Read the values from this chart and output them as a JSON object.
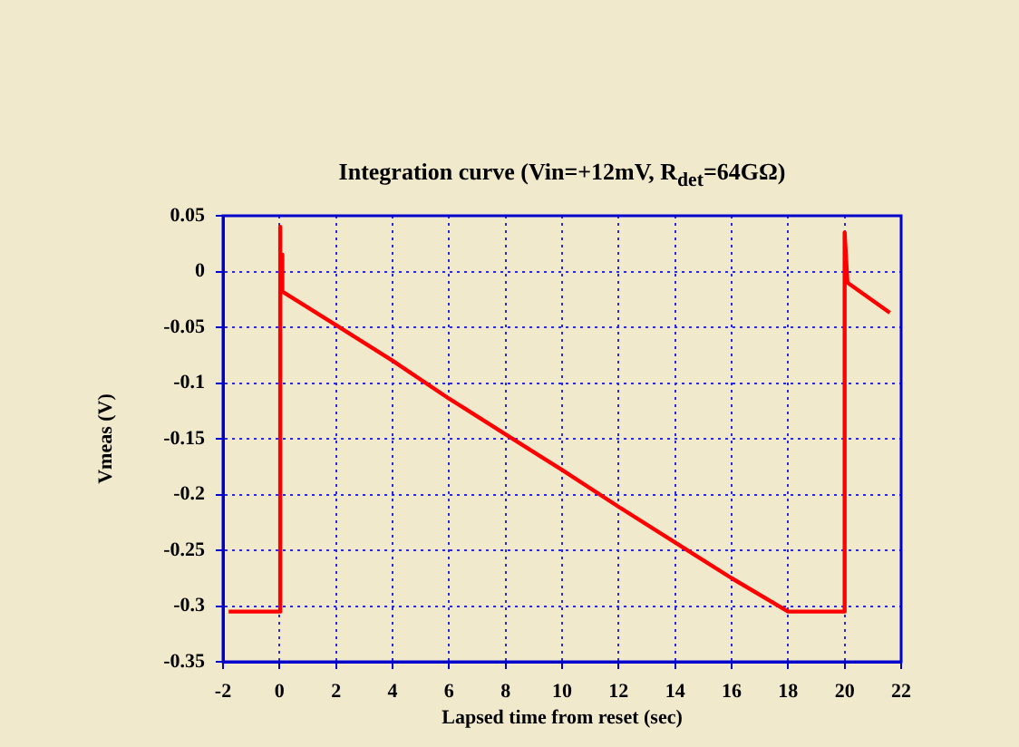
{
  "chart_data": {
    "type": "line",
    "title": "Integration curve (Vin=+12mV, R$_{det}$=64GΩ)",
    "xlabel": "Lapsed time from reset (sec)",
    "ylabel": "Vmeas (V)",
    "series": [
      {
        "color": "#ff0000",
        "x": [
          -1.8,
          0,
          0,
          0.05,
          0.1,
          0.1,
          2,
          4,
          6,
          8,
          10,
          12,
          14,
          16,
          18,
          20,
          20,
          20.1,
          21.6
        ],
        "values": [
          -0.305,
          -0.305,
          0.04,
          0.015,
          0.015,
          -0.018,
          -0.048,
          -0.08,
          -0.114,
          -0.146,
          -0.178,
          -0.211,
          -0.243,
          -0.275,
          -0.305,
          -0.305,
          0.035,
          -0.01,
          -0.037
        ]
      }
    ],
    "xlim": [
      -2,
      22
    ],
    "xticks": [
      -2,
      0,
      2,
      4,
      6,
      8,
      10,
      12,
      14,
      16,
      18,
      20,
      22
    ],
    "ylim": [
      -0.35,
      0.05
    ],
    "yticks": [
      -0.35,
      -0.3,
      -0.25,
      -0.2,
      -0.15,
      -0.1,
      -0.05,
      0,
      0.05
    ],
    "grid": true,
    "legend": false,
    "marker": "none",
    "line_style": "solid"
  }
}
